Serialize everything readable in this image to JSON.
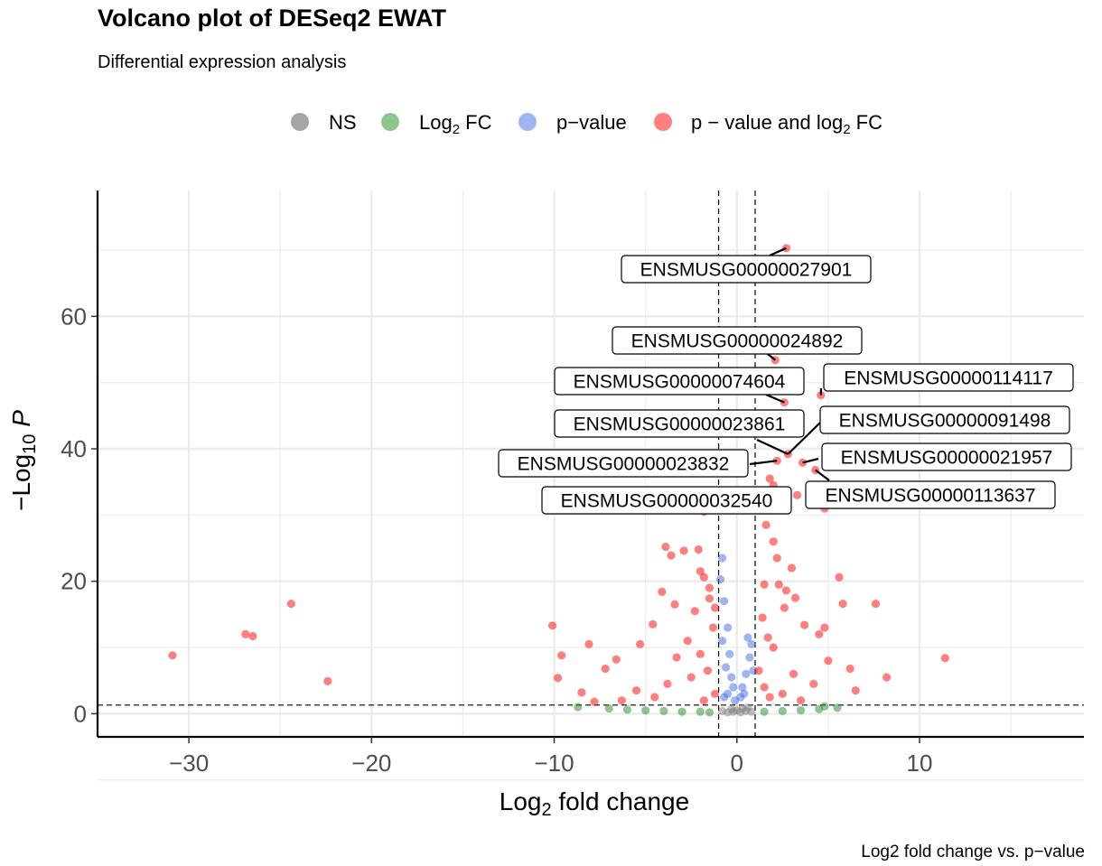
{
  "chart_data": {
    "type": "scatter",
    "title": "Volcano plot of DESeq2 EWAT",
    "subtitle": "Differential expression analysis",
    "caption": "Log2 fold change vs. p−value",
    "xlabel": "Log2 fold change",
    "ylabel": "−Log10 P",
    "xlim": [
      -35,
      19
    ],
    "ylim": [
      -3.5,
      79
    ],
    "x_ticks": [
      -30,
      -20,
      -10,
      0,
      10
    ],
    "y_ticks": [
      0,
      20,
      40,
      60
    ],
    "x_tick_labels": [
      "−30",
      "−20",
      "−10",
      "0",
      "10"
    ],
    "y_tick_labels": [
      "0",
      "20",
      "40",
      "60"
    ],
    "grid": true,
    "legend_position": "top",
    "cutoffs": {
      "log2fc": [
        -1,
        1
      ],
      "neg_log10_p": 1.3
    },
    "legend": [
      {
        "key": "NS",
        "color": "#808080"
      },
      {
        "key": "Log2 FC",
        "color": "#228b22"
      },
      {
        "key": "p-value",
        "color": "#4169e1"
      },
      {
        "key": "p-value and log2 FC",
        "color": "#ff0000"
      }
    ],
    "series": [
      {
        "name": "p - value and log2 FC",
        "color": "#ff0000",
        "points": [
          [
            -30.9,
            8.8
          ],
          [
            -26.9,
            12.0
          ],
          [
            -26.5,
            11.7
          ],
          [
            -24.4,
            16.6
          ],
          [
            -22.4,
            4.9
          ],
          [
            11.4,
            8.4
          ],
          [
            -10.1,
            13.3
          ],
          [
            -9.6,
            8.8
          ],
          [
            -9.8,
            5.4
          ],
          [
            -8.1,
            10.5
          ],
          [
            -8.5,
            3.2
          ],
          [
            -7.2,
            6.8
          ],
          [
            -6.6,
            8.2
          ],
          [
            -5.3,
            10.5
          ],
          [
            -4.6,
            13.5
          ],
          [
            -4.1,
            18.4
          ],
          [
            -3.9,
            25.2
          ],
          [
            -3.6,
            23.9
          ],
          [
            -2.9,
            24.6
          ],
          [
            -2.1,
            24.8
          ],
          [
            -2.0,
            21.5
          ],
          [
            -1.8,
            20.6
          ],
          [
            -1.5,
            17.4
          ],
          [
            -3.4,
            16.5
          ],
          [
            -2.3,
            15.5
          ],
          [
            -1.5,
            19.0
          ],
          [
            -1.2,
            16.0
          ],
          [
            -1.3,
            13.0
          ],
          [
            -2.7,
            11.0
          ],
          [
            -3.3,
            8.5
          ],
          [
            -2.0,
            9.0
          ],
          [
            -1.6,
            6.5
          ],
          [
            -2.5,
            5.5
          ],
          [
            -3.8,
            4.5
          ],
          [
            -4.5,
            2.5
          ],
          [
            -5.5,
            3.5
          ],
          [
            -6.3,
            2.0
          ],
          [
            -7.8,
            1.8
          ],
          [
            -1.2,
            3.0
          ],
          [
            -1.8,
            2.0
          ],
          [
            1.5,
            19.5
          ],
          [
            1.6,
            28.5
          ],
          [
            1.8,
            31.0
          ],
          [
            2.0,
            26.0
          ],
          [
            2.2,
            23.5
          ],
          [
            2.3,
            19.5
          ],
          [
            2.7,
            18.6
          ],
          [
            3.0,
            22.0
          ],
          [
            2.6,
            16.0
          ],
          [
            3.2,
            17.5
          ],
          [
            1.4,
            14.5
          ],
          [
            1.7,
            11.5
          ],
          [
            2.0,
            10.0
          ],
          [
            3.7,
            13.4
          ],
          [
            4.5,
            12.0
          ],
          [
            4.8,
            13.0
          ],
          [
            5.6,
            20.6
          ],
          [
            5.8,
            16.6
          ],
          [
            7.6,
            16.6
          ],
          [
            6.2,
            6.8
          ],
          [
            6.5,
            3.5
          ],
          [
            8.2,
            5.5
          ],
          [
            5.0,
            8.0
          ],
          [
            4.2,
            4.5
          ],
          [
            3.1,
            6.0
          ],
          [
            2.5,
            3.0
          ],
          [
            1.5,
            4.0
          ],
          [
            1.2,
            6.5
          ],
          [
            1.8,
            2.5
          ],
          [
            3.5,
            2.0
          ],
          [
            2.7,
            70.3
          ],
          [
            2.1,
            53.4
          ],
          [
            2.6,
            47.0
          ],
          [
            4.6,
            48.1
          ],
          [
            2.8,
            39.2
          ],
          [
            3.6,
            37.9
          ],
          [
            2.2,
            38.2
          ],
          [
            4.3,
            36.8
          ],
          [
            -0.9,
            32.5
          ],
          [
            4.8,
            31.0
          ],
          [
            -1.8,
            30.5
          ],
          [
            3.3,
            33.0
          ],
          [
            2.0,
            34.5
          ],
          [
            1.8,
            35.5
          ],
          [
            4.0,
            32.0
          ]
        ]
      },
      {
        "name": "p-value",
        "color": "#4169e1",
        "points": [
          [
            -0.8,
            23.5
          ],
          [
            -0.9,
            20.3
          ],
          [
            -0.7,
            17.0
          ],
          [
            -0.5,
            13.0
          ],
          [
            -0.8,
            11.0
          ],
          [
            -0.4,
            9.0
          ],
          [
            -0.6,
            7.0
          ],
          [
            -0.3,
            5.5
          ],
          [
            -0.2,
            4.0
          ],
          [
            -0.5,
            3.0
          ],
          [
            -0.7,
            2.5
          ],
          [
            -0.1,
            2.0
          ],
          [
            0.2,
            2.5
          ],
          [
            0.3,
            4.0
          ],
          [
            0.5,
            6.0
          ],
          [
            0.7,
            8.5
          ],
          [
            0.8,
            10.5
          ],
          [
            0.6,
            11.5
          ],
          [
            0.9,
            6.5
          ],
          [
            0.4,
            3.0
          ]
        ]
      },
      {
        "name": "Log2 FC",
        "color": "#228b22",
        "points": [
          [
            -8.7,
            1.0
          ],
          [
            -7.0,
            0.8
          ],
          [
            -6.0,
            0.6
          ],
          [
            -5.0,
            0.5
          ],
          [
            -4.0,
            0.4
          ],
          [
            -3.0,
            0.3
          ],
          [
            -2.0,
            0.3
          ],
          [
            -1.5,
            0.2
          ],
          [
            1.5,
            0.3
          ],
          [
            2.5,
            0.4
          ],
          [
            3.5,
            0.5
          ],
          [
            4.5,
            0.7
          ],
          [
            5.5,
            0.9
          ],
          [
            4.8,
            1.1
          ]
        ]
      },
      {
        "name": "NS",
        "color": "#808080",
        "points": [
          [
            -0.8,
            0.4
          ],
          [
            -0.5,
            0.2
          ],
          [
            -0.2,
            0.3
          ],
          [
            0.0,
            0.5
          ],
          [
            0.2,
            0.2
          ],
          [
            0.5,
            0.4
          ],
          [
            0.8,
            0.3
          ],
          [
            -0.3,
            0.7
          ],
          [
            0.3,
            0.8
          ],
          [
            0.6,
            0.9
          ]
        ]
      }
    ],
    "labels": [
      {
        "text": "ENSMUSG00000027901",
        "x": 2.7,
        "y": 70.3
      },
      {
        "text": "ENSMUSG00000024892",
        "x": 2.1,
        "y": 53.4
      },
      {
        "text": "ENSMUSG00000074604",
        "x": 2.6,
        "y": 47.0
      },
      {
        "text": "ENSMUSG00000114117",
        "x": 4.6,
        "y": 48.1
      },
      {
        "text": "ENSMUSG00000023861",
        "x": 2.8,
        "y": 39.2
      },
      {
        "text": "ENSMUSG00000091498",
        "x": 2.8,
        "y": 39.2
      },
      {
        "text": "ENSMUSG00000021957",
        "x": 3.6,
        "y": 37.9
      },
      {
        "text": "ENSMUSG00000023832",
        "x": 2.2,
        "y": 38.2
      },
      {
        "text": "ENSMUSG00000113637",
        "x": 4.3,
        "y": 36.8
      },
      {
        "text": "ENSMUSG00000032540",
        "x": -0.9,
        "y": 32.5
      }
    ]
  }
}
